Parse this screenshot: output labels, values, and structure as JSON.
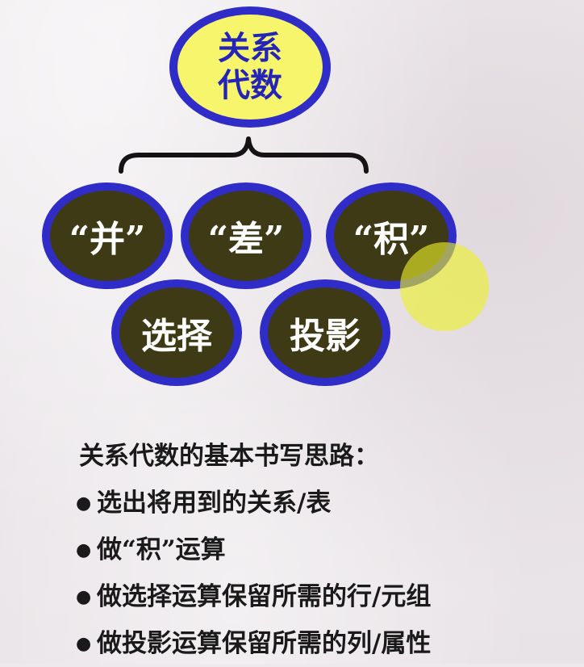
{
  "diagram": {
    "root": {
      "line1": "关系",
      "line2": "代数"
    },
    "operations": [
      {
        "label": "“并”"
      },
      {
        "label": "“差”"
      },
      {
        "label": "“积”"
      },
      {
        "label": "选择"
      },
      {
        "label": "投影"
      }
    ]
  },
  "notes": {
    "heading": "关系代数的基本书写思路：",
    "bullet_glyph": "●",
    "items": [
      "选出将用到的关系/表",
      "做“积”运算",
      "做选择运算保留所需的行/元组",
      "做投影运算保留所需的列/属性"
    ]
  },
  "colors": {
    "oval_border": "#2f2cc8",
    "root_fill": "#f7f56b",
    "root_text": "#2424b8",
    "operation_fill": "#3f3a16",
    "operation_text": "#ffffff",
    "pointer_highlight": "#ebf028"
  }
}
